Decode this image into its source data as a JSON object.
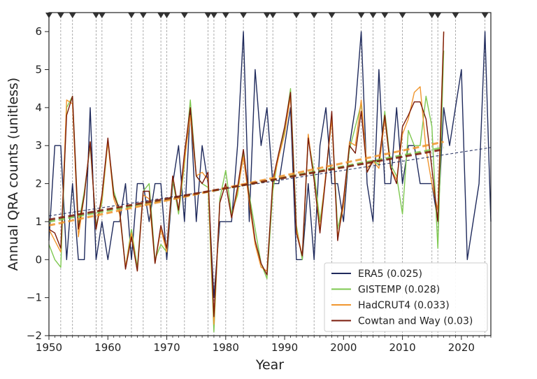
{
  "chart_data": {
    "type": "line",
    "title": "",
    "xlabel": "Year",
    "ylabel": "Annual QRA counts (unitless)",
    "xlim": [
      1950,
      2025
    ],
    "ylim": [
      -2,
      6.5
    ],
    "xticks": [
      1950,
      1960,
      1970,
      1980,
      1990,
      2000,
      2010,
      2020
    ],
    "yticks": [
      -2,
      -1,
      0,
      1,
      2,
      3,
      4,
      5,
      6
    ],
    "xtick_labels": [
      "1950",
      "1960",
      "1970",
      "1980",
      "1990",
      "2000",
      "2010",
      "2020"
    ],
    "ytick_labels": [
      "−2",
      "−1",
      "0",
      "1",
      "2",
      "3",
      "4",
      "5",
      "6"
    ],
    "legend_position": "lower-right",
    "vertical_lines": [
      1952,
      1954,
      1958,
      1959,
      1964,
      1966,
      1969,
      1970,
      1973,
      1977,
      1978,
      1980,
      1983,
      1987,
      1988,
      1992,
      1995,
      1998,
      2003,
      2005,
      2007,
      2010,
      2015,
      2016,
      2019,
      2024
    ],
    "event_markers": [
      1950,
      1952,
      1954,
      1958,
      1959,
      1964,
      1966,
      1969,
      1970,
      1973,
      1977,
      1978,
      1980,
      1983,
      1987,
      1988,
      1992,
      1995,
      1998,
      2003,
      2005,
      2007,
      2010,
      2015,
      2016,
      2019,
      2024
    ],
    "series": [
      {
        "name": "ERA5",
        "legend_label": "ERA5 (0.025)",
        "color": "#1f2a5c",
        "x_start": 1950,
        "values": [
          0.5,
          3,
          3,
          0,
          2,
          0,
          0,
          4,
          0,
          1,
          0,
          1,
          1,
          2,
          0,
          2,
          2,
          1,
          2,
          2,
          0,
          2,
          3,
          1,
          4,
          1,
          3,
          2,
          -1,
          1,
          1,
          1,
          3,
          6,
          1,
          5,
          3,
          4,
          2,
          2,
          3,
          4,
          0,
          0,
          2,
          0,
          3,
          4,
          2,
          2,
          1,
          3,
          4,
          6,
          2,
          1,
          5,
          2,
          2,
          4,
          2,
          3,
          3,
          2,
          2,
          2,
          1,
          4,
          3,
          4,
          5,
          0,
          1,
          2,
          6,
          1
        ],
        "trend": [
          1.15,
          2.95
        ]
      },
      {
        "name": "GISTEMP",
        "legend_label": "GISTEMP (0.028)",
        "color": "#7ec850",
        "x_start": 1950,
        "values": [
          0.4,
          0,
          -0.2,
          4,
          4.3,
          0.9,
          1.8,
          3,
          0.9,
          1.5,
          3.1,
          1.8,
          1.3,
          -0.2,
          0.8,
          -0.2,
          1.8,
          2,
          0,
          0.4,
          0.2,
          2.1,
          1.2,
          2.5,
          4.2,
          2.2,
          2,
          1.9,
          -1.9,
          1.6,
          2.35,
          1.2,
          1.7,
          2.8,
          1.7,
          0.8,
          -0.1,
          -0.5,
          1.8,
          2.8,
          3.4,
          4.5,
          0.9,
          0,
          3.2,
          2.3,
          1,
          2.2,
          3.8,
          0.8,
          1.5,
          2.9,
          3.5,
          4.1,
          2.3,
          2.6,
          2.5,
          3.9,
          2.5,
          2.2,
          1.2,
          3.4,
          3,
          3,
          4.3,
          3.5,
          0.3,
          5.5
        ],
        "trend": [
          1.0,
          2.95
        ]
      },
      {
        "name": "HadCRUT4",
        "legend_label": "HadCRUT4 (0.033)",
        "color": "#f0962e",
        "x_start": 1950,
        "values": [
          0.8,
          0.5,
          0.2,
          4.2,
          4.1,
          0.6,
          1.7,
          3.1,
          0.8,
          1.6,
          3.1,
          1.6,
          1.2,
          -0.2,
          0.7,
          -0.3,
          1.7,
          1.6,
          -0.1,
          0.8,
          0.2,
          2.2,
          1.3,
          2.6,
          3.8,
          2.2,
          2.3,
          2.1,
          -1.7,
          1.5,
          2,
          1.1,
          1.8,
          2.7,
          1.5,
          0.4,
          -0.2,
          -0.3,
          2,
          2.7,
          3.3,
          4.3,
          0.8,
          0.1,
          3.3,
          2.1,
          0.8,
          2.3,
          3.7,
          0.6,
          1.4,
          3.1,
          3,
          4.2,
          2.4,
          2.6,
          2.4,
          3.7,
          2.4,
          2.1,
          3.3,
          3.7,
          4.4,
          4.55,
          2.9,
          2,
          1.3,
          6
        ],
        "trend": [
          0.9,
          3.1
        ]
      },
      {
        "name": "Cowtan and Way",
        "legend_label": "Cowtan and Way (0.03)",
        "color": "#7a1a0a",
        "x_start": 1950,
        "values": [
          0.8,
          0.7,
          0.3,
          3.8,
          4.3,
          0.8,
          1.7,
          3.1,
          0.8,
          1.7,
          3.2,
          1.7,
          1.3,
          -0.25,
          0.6,
          -0.3,
          1.8,
          1.8,
          -0.1,
          0.9,
          0.3,
          2.2,
          1.3,
          2.8,
          4,
          2.2,
          2,
          2.3,
          -1.5,
          1.5,
          2,
          1.1,
          1.9,
          2.9,
          1.6,
          0.5,
          -0.1,
          -0.4,
          2.1,
          2.8,
          3.5,
          4.4,
          0.7,
          0.1,
          3.2,
          2.1,
          0.7,
          2.2,
          3.9,
          0.5,
          1.6,
          3,
          2.8,
          3.9,
          2.3,
          2.6,
          2.6,
          3.8,
          2.4,
          2,
          3.5,
          3.8,
          4.15,
          4.15,
          3.7,
          2.4,
          1,
          6
        ],
        "trend": [
          1.05,
          2.9
        ]
      }
    ]
  }
}
